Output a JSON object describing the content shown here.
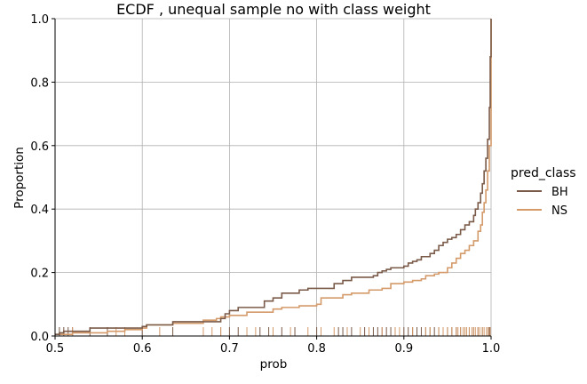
{
  "chart_data": {
    "type": "line",
    "title": "ECDF , unequal sample no  with class weight",
    "xlabel": "prob",
    "ylabel": "Proportion",
    "xlim": [
      0.5,
      1.0
    ],
    "ylim": [
      0.0,
      1.0
    ],
    "xticks": [
      "0.5",
      "0.6",
      "0.7",
      "0.8",
      "0.9",
      "1.0"
    ],
    "yticks": [
      "0.0",
      "0.2",
      "0.4",
      "0.6",
      "0.8",
      "1.0"
    ],
    "grid": true,
    "legend": {
      "title": "pred_class",
      "placement": "right"
    },
    "series": [
      {
        "name": "BH",
        "color": "#7a5a48",
        "x": [
          0.5,
          0.505,
          0.51,
          0.54,
          0.6,
          0.605,
          0.635,
          0.69,
          0.695,
          0.7,
          0.71,
          0.74,
          0.75,
          0.76,
          0.78,
          0.79,
          0.82,
          0.83,
          0.84,
          0.865,
          0.87,
          0.875,
          0.88,
          0.885,
          0.9,
          0.905,
          0.91,
          0.915,
          0.92,
          0.93,
          0.935,
          0.94,
          0.945,
          0.95,
          0.955,
          0.96,
          0.965,
          0.97,
          0.975,
          0.98,
          0.982,
          0.985,
          0.988,
          0.99,
          0.992,
          0.994,
          0.996,
          0.998,
          0.999,
          1.0
        ],
        "y": [
          0.005,
          0.01,
          0.015,
          0.025,
          0.03,
          0.035,
          0.045,
          0.055,
          0.07,
          0.08,
          0.09,
          0.11,
          0.12,
          0.135,
          0.145,
          0.15,
          0.165,
          0.175,
          0.185,
          0.19,
          0.2,
          0.205,
          0.21,
          0.215,
          0.22,
          0.23,
          0.235,
          0.24,
          0.25,
          0.26,
          0.27,
          0.285,
          0.295,
          0.305,
          0.31,
          0.32,
          0.335,
          0.35,
          0.36,
          0.38,
          0.4,
          0.42,
          0.45,
          0.48,
          0.52,
          0.56,
          0.62,
          0.72,
          0.88,
          1.0
        ]
      },
      {
        "name": "NS",
        "color": "#d49a6a",
        "x": [
          0.5,
          0.52,
          0.56,
          0.58,
          0.6,
          0.605,
          0.635,
          0.67,
          0.685,
          0.69,
          0.7,
          0.72,
          0.75,
          0.76,
          0.78,
          0.8,
          0.805,
          0.83,
          0.84,
          0.86,
          0.875,
          0.885,
          0.9,
          0.91,
          0.92,
          0.925,
          0.935,
          0.94,
          0.95,
          0.955,
          0.96,
          0.965,
          0.97,
          0.975,
          0.98,
          0.985,
          0.988,
          0.99,
          0.992,
          0.994,
          0.996,
          0.998,
          1.0
        ],
        "y": [
          0.005,
          0.01,
          0.015,
          0.02,
          0.025,
          0.035,
          0.04,
          0.05,
          0.055,
          0.06,
          0.065,
          0.075,
          0.085,
          0.09,
          0.095,
          0.1,
          0.12,
          0.13,
          0.135,
          0.145,
          0.15,
          0.165,
          0.17,
          0.175,
          0.18,
          0.19,
          0.195,
          0.2,
          0.215,
          0.23,
          0.245,
          0.26,
          0.27,
          0.285,
          0.3,
          0.33,
          0.35,
          0.39,
          0.42,
          0.46,
          0.52,
          0.6,
          1.0
        ]
      }
    ],
    "rug": {
      "BH": [
        0.505,
        0.51,
        0.515,
        0.52,
        0.54,
        0.56,
        0.6,
        0.635,
        0.69,
        0.7,
        0.71,
        0.735,
        0.745,
        0.76,
        0.775,
        0.8,
        0.825,
        0.83,
        0.84,
        0.855,
        0.865,
        0.87,
        0.875,
        0.88,
        0.885,
        0.89,
        0.9,
        0.905,
        0.91,
        0.915,
        0.92,
        0.925,
        0.93,
        0.935,
        0.94,
        0.945,
        0.95,
        0.955,
        0.96,
        0.965,
        0.97,
        0.975,
        0.98,
        0.985,
        0.99,
        0.995,
        0.998
      ],
      "NS": [
        0.5,
        0.52,
        0.57,
        0.58,
        0.62,
        0.67,
        0.68,
        0.69,
        0.72,
        0.73,
        0.75,
        0.77,
        0.79,
        0.805,
        0.82,
        0.835,
        0.85,
        0.86,
        0.875,
        0.89,
        0.895,
        0.91,
        0.925,
        0.93,
        0.94,
        0.945,
        0.95,
        0.955,
        0.96,
        0.962,
        0.965,
        0.968,
        0.97,
        0.972,
        0.975,
        0.978,
        0.98,
        0.982,
        0.985,
        0.987,
        0.99,
        0.992,
        0.995,
        0.997,
        0.999
      ]
    }
  }
}
